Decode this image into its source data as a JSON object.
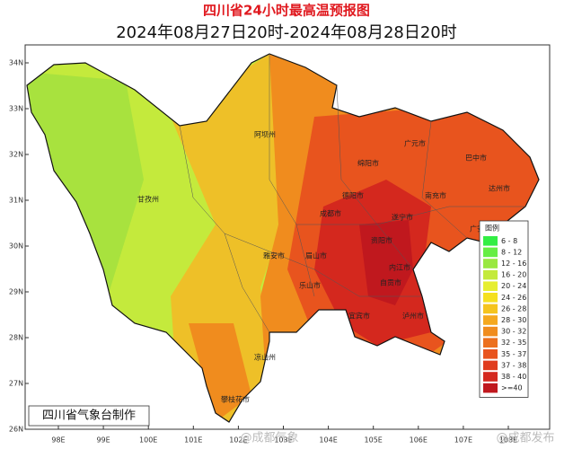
{
  "title": "四川省24小时最高温预报图",
  "subtitle": "2024年08月27日20时-2024年08月28日20时",
  "lat_labels": [
    "34N",
    "33N",
    "32N",
    "31N",
    "30N",
    "29N",
    "28N",
    "27N",
    "26N"
  ],
  "lon_labels": [
    "98E",
    "99E",
    "100E",
    "101E",
    "102E",
    "103E",
    "104E",
    "105E",
    "106E",
    "107E",
    "108E"
  ],
  "cities": [
    "阿坝州",
    "甘孜州",
    "广元市",
    "巴中市",
    "绵阳市",
    "达州市",
    "南充市",
    "德阳市",
    "成都市",
    "遂宁市",
    "广安市",
    "资阳市",
    "雅安市",
    "眉山市",
    "内江市",
    "乐山市",
    "自贡市",
    "宜宾市",
    "泸州市",
    "凉山州",
    "攀枝花市"
  ],
  "legend": {
    "title": "图例",
    "items": [
      {
        "label": "6 - 8",
        "color": "#33ee44"
      },
      {
        "label": "8 - 12",
        "color": "#66ee44"
      },
      {
        "label": "12 - 16",
        "color": "#99e840"
      },
      {
        "label": "16 - 20",
        "color": "#c4ea3c"
      },
      {
        "label": "20 - 24",
        "color": "#e6ee30"
      },
      {
        "label": "24 - 26",
        "color": "#f5e020"
      },
      {
        "label": "26 - 28",
        "color": "#f5c41e"
      },
      {
        "label": "28 - 30",
        "color": "#f5a81e"
      },
      {
        "label": "30 - 32",
        "color": "#f08c1e"
      },
      {
        "label": "32 - 35",
        "color": "#ec701e"
      },
      {
        "label": "35 - 37",
        "color": "#e8541e"
      },
      {
        "label": "37 - 38",
        "color": "#e03c1e"
      },
      {
        "label": "38 - 40",
        "color": "#d4281e"
      },
      {
        "label": ">=40",
        "color": "#c0181e"
      }
    ]
  },
  "credit": "四川省气象台制作",
  "watermarks": [
    "@成都气象",
    "@成都发布"
  ]
}
